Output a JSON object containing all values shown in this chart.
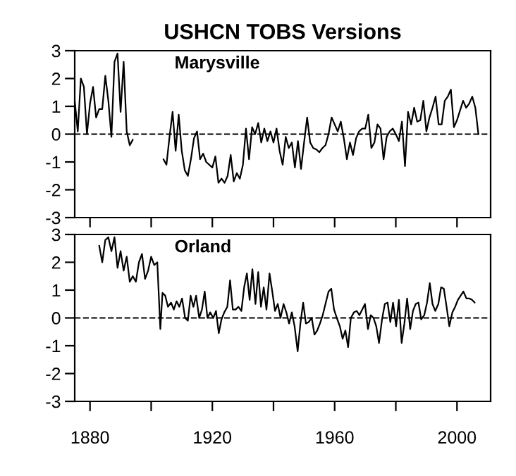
{
  "chart_data": [
    {
      "type": "line",
      "title": "USHCN TOBS Versions",
      "annotations": [
        "Marysville"
      ],
      "tick_labels": "y",
      "xlim": [
        1875,
        2011
      ],
      "ylim": [
        -3,
        3
      ],
      "xticks": [
        1880,
        {
          "value": 1900,
          "label": null
        },
        1920,
        {
          "value": 1940,
          "label": null
        },
        1960,
        {
          "value": 1980,
          "label": null
        },
        2000
      ],
      "yticks": [
        -3,
        -2,
        -1,
        0,
        1,
        2,
        3
      ],
      "ref_lines": [
        {
          "axis": "y",
          "value": 0,
          "line_style": "dashed",
          "color": "#000000"
        }
      ],
      "series": [
        {
          "color": "#000000",
          "x": [
            1875,
            1876,
            1877,
            1878,
            1879,
            1880,
            1881,
            1882,
            1883,
            1884,
            1885,
            1886,
            1887,
            1888,
            1889,
            1890,
            1891,
            1892,
            1893,
            1894,
            1895,
            1896,
            1897,
            1898,
            1899,
            1900,
            1901,
            1902,
            1903,
            1904,
            1905,
            1906,
            1907,
            1908,
            1909,
            1910,
            1911,
            1912,
            1913,
            1914,
            1915,
            1916,
            1917,
            1918,
            1919,
            1920,
            1921,
            1922,
            1923,
            1924,
            1925,
            1926,
            1927,
            1928,
            1929,
            1930,
            1931,
            1932,
            1933,
            1934,
            1935,
            1936,
            1937,
            1938,
            1939,
            1940,
            1941,
            1942,
            1943,
            1944,
            1945,
            1946,
            1947,
            1948,
            1949,
            1950,
            1951,
            1952,
            1953,
            1954,
            1955,
            1956,
            1957,
            1958,
            1959,
            1960,
            1961,
            1962,
            1963,
            1964,
            1965,
            1966,
            1967,
            1968,
            1969,
            1970,
            1971,
            1972,
            1973,
            1974,
            1975,
            1976,
            1977,
            1978,
            1979,
            1980,
            1981,
            1982,
            1983,
            1984,
            1985,
            1986,
            1987,
            1988,
            1989,
            1990,
            1991,
            1992,
            1993,
            1994,
            1995,
            1996,
            1997,
            1998,
            1999,
            2000,
            2001,
            2002,
            2003,
            2004,
            2005,
            2006,
            2007
          ],
          "values": [
            1.2,
            0.1,
            2.0,
            1.7,
            0.0,
            1.1,
            1.7,
            0.6,
            0.9,
            0.9,
            2.1,
            1.2,
            -0.1,
            2.6,
            2.9,
            0.8,
            2.6,
            0.1,
            -0.4,
            -0.2,
            null,
            null,
            null,
            null,
            null,
            null,
            null,
            null,
            null,
            -0.9,
            -1.1,
            -0.1,
            0.8,
            -0.6,
            0.7,
            -0.6,
            -1.3,
            -1.5,
            -0.9,
            -0.15,
            0.1,
            -0.9,
            -0.7,
            -1.0,
            -1.1,
            -1.2,
            -0.8,
            -1.75,
            -1.6,
            -1.75,
            -1.5,
            -0.75,
            -1.7,
            -1.4,
            -1.6,
            -1.1,
            0.2,
            -0.9,
            0.25,
            0.0,
            0.4,
            -0.3,
            0.2,
            -0.25,
            0.1,
            -0.3,
            0.2,
            -0.6,
            -1.1,
            -0.1,
            -0.5,
            -0.3,
            -1.2,
            -0.25,
            -1.25,
            -0.3,
            0.6,
            -0.3,
            -0.5,
            -0.55,
            -0.65,
            -0.5,
            -0.4,
            0.0,
            0.6,
            0.35,
            0.1,
            0.45,
            -0.15,
            -0.9,
            -0.3,
            -0.75,
            -0.15,
            0.1,
            0.2,
            0.2,
            0.7,
            -0.5,
            -0.3,
            0.35,
            0.2,
            -0.9,
            -0.1,
            0.1,
            0.2,
            0.0,
            -0.25,
            0.45,
            -1.15,
            0.8,
            0.35,
            0.95,
            0.45,
            0.5,
            1.2,
            0.1,
            0.6,
            0.95,
            1.35,
            0.35,
            0.35,
            1.2,
            1.35,
            1.6,
            0.25,
            0.5,
            0.85,
            1.2,
            0.95,
            1.1,
            1.35,
            0.95,
            0.0
          ]
        }
      ]
    },
    {
      "type": "line",
      "annotations": [
        "Orland"
      ],
      "xlim": [
        1875,
        2011
      ],
      "ylim": [
        -3,
        3
      ],
      "xticks": [
        1880,
        {
          "value": 1900,
          "label": null
        },
        1920,
        {
          "value": 1940,
          "label": null
        },
        1960,
        {
          "value": 1980,
          "label": null
        },
        2000
      ],
      "yticks": [
        -3,
        -2,
        -1,
        0,
        1,
        2,
        3
      ],
      "ref_lines": [
        {
          "axis": "y",
          "value": 0,
          "line_style": "dashed",
          "color": "#000000"
        }
      ],
      "series": [
        {
          "color": "#000000",
          "x": [
            1883,
            1884,
            1885,
            1886,
            1887,
            1888,
            1889,
            1890,
            1891,
            1892,
            1893,
            1894,
            1895,
            1896,
            1897,
            1898,
            1899,
            1900,
            1901,
            1902,
            1903,
            1903.7,
            1904.6,
            1905.5,
            1906.5,
            1907.4,
            1908.3,
            1909.2,
            1910.1,
            1911.1,
            1912.0,
            1912.9,
            1913.8,
            1914.7,
            1915.7,
            1916.6,
            1917.5,
            1918.4,
            1919.3,
            1920.3,
            1921.2,
            1922.1,
            1923.0,
            1923.9,
            1924.9,
            1925.8,
            1926.7,
            1927.6,
            1928.5,
            1929.5,
            1930.4,
            1931.3,
            1932.2,
            1933.1,
            1934.1,
            1935.0,
            1935.9,
            1936.8,
            1937.7,
            1938.7,
            1939.6,
            1940.5,
            1941.4,
            1942.3,
            1943.3,
            1944.2,
            1945.1,
            1946.0,
            1946.9,
            1947.9,
            1948.8,
            1949.7,
            1950.6,
            1951.5,
            1952.5,
            1953.4,
            1954.3,
            1955.2,
            1956.1,
            1957.1,
            1958.0,
            1958.9,
            1959.8,
            1960.7,
            1961.7,
            1962.6,
            1963.5,
            1964.4,
            1965.3,
            1966.3,
            1967.2,
            1968.1,
            1969.0,
            1969.9,
            1970.9,
            1971.8,
            1972.7,
            1973.6,
            1974.5,
            1975.5,
            1976.4,
            1977.3,
            1978.2,
            1979.1,
            1980.1,
            1981.0,
            1981.9,
            1982.8,
            1983.7,
            1984.7,
            1985.6,
            1986.5,
            1987.4,
            1988.3,
            1989.3,
            1990.2,
            1991.1,
            1992.0,
            1992.9,
            1993.9,
            1994.8,
            1995.7,
            1996.6,
            1997.5,
            1998.5,
            1999.4,
            2000.3,
            2001.2,
            2002.1,
            2003.1,
            2004.0,
            2004.9,
            2005.8
          ],
          "values": [
            2.6,
            2.0,
            2.8,
            2.9,
            2.4,
            2.9,
            1.8,
            2.4,
            1.7,
            2.2,
            1.3,
            1.5,
            1.3,
            2.0,
            2.3,
            1.4,
            1.7,
            2.2,
            1.9,
            2.0,
            -0.4,
            0.9,
            0.8,
            0.4,
            0.55,
            0.3,
            0.6,
            0.4,
            0.7,
            0.0,
            -0.1,
            0.8,
            0.4,
            0.8,
            0.0,
            0.3,
            0.95,
            0.0,
            0.2,
            0.0,
            0.25,
            -0.55,
            -0.05,
            0.2,
            0.4,
            1.35,
            0.3,
            0.3,
            0.4,
            0.25,
            1.1,
            1.6,
            0.65,
            1.75,
            0.5,
            1.65,
            0.4,
            1.1,
            0.3,
            1.6,
            0.95,
            0.25,
            0.5,
            0.0,
            0.5,
            0.2,
            -0.2,
            0.2,
            -0.3,
            -1.2,
            -0.2,
            0.55,
            -0.2,
            -0.15,
            0.0,
            -0.6,
            -0.45,
            -0.2,
            0.1,
            0.55,
            0.95,
            1.05,
            0.3,
            0.0,
            -0.3,
            -0.75,
            -0.45,
            -1.05,
            0.0,
            0.2,
            0.25,
            0.1,
            0.3,
            0.5,
            -0.4,
            0.1,
            0.0,
            -0.3,
            -0.9,
            -0.05,
            0.5,
            0.55,
            -0.15,
            0.55,
            -0.3,
            0.65,
            -0.9,
            -0.2,
            0.7,
            -0.4,
            0.25,
            0.5,
            0.55,
            -0.05,
            0.1,
            0.55,
            1.25,
            0.5,
            0.25,
            0.5,
            1.1,
            1.05,
            0.4,
            -0.3,
            0.2,
            0.4,
            0.65,
            0.8,
            0.95,
            0.7,
            0.7,
            0.65,
            0.55
          ]
        }
      ]
    }
  ]
}
